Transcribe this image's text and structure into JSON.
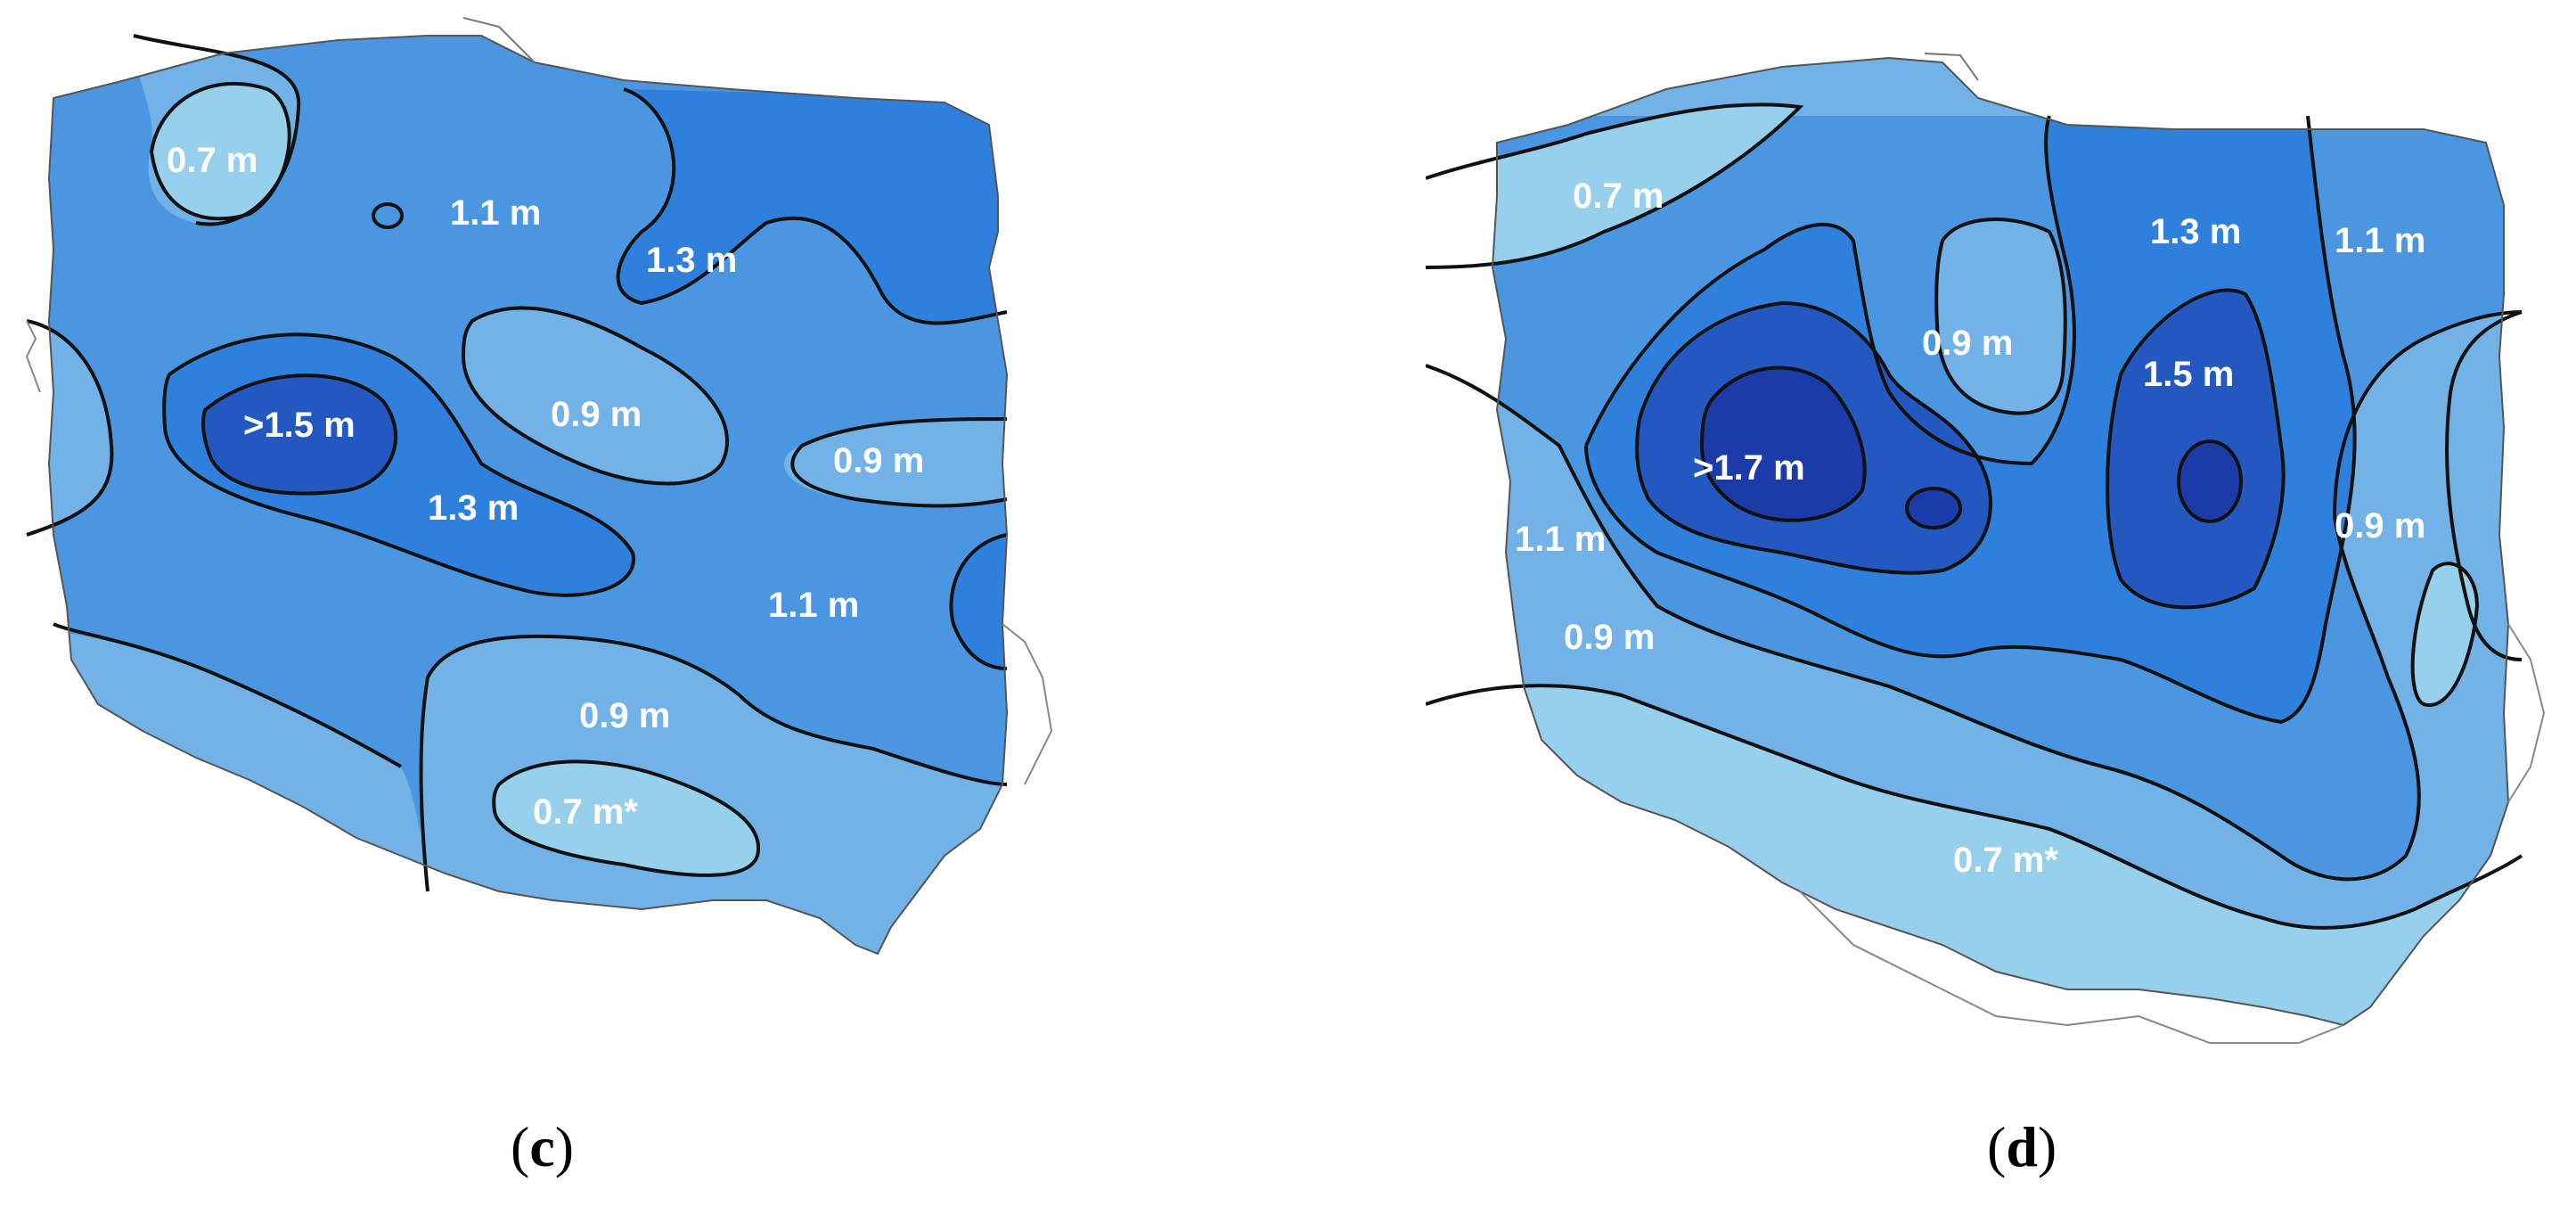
{
  "colors": {
    "class_0_7": "#97d0ec",
    "class_0_9": "#72b2e6",
    "class_1_1": "#4b96e0",
    "class_1_3": "#2f80dc",
    "class_1_5": "#2258c0",
    "class_1_7": "#1b3ca8",
    "contour": "#111111",
    "border": "#555555",
    "label": "#ffffff"
  },
  "panels": [
    {
      "id": "c",
      "caption_letter": "c",
      "labels": [
        "0.7 m",
        "1.1 m",
        "1.3 m",
        ">1.5 m",
        "0.9 m",
        "0.9 m",
        "1.3 m",
        "1.1 m",
        "0.9 m",
        "0.7 m*"
      ]
    },
    {
      "id": "d",
      "caption_letter": "d",
      "labels": [
        "0.7 m",
        "1.3 m",
        "1.1 m",
        "0.9 m",
        "1.5 m",
        ">1.7 m",
        "0.9 m",
        "1.1 m",
        "0.9 m",
        "0.7 m*"
      ]
    }
  ]
}
